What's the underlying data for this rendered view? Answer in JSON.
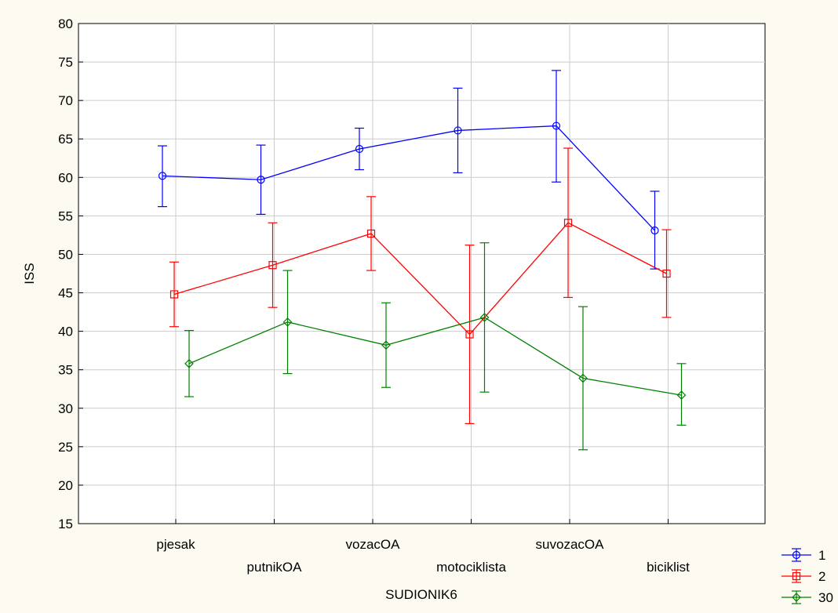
{
  "chart_data": {
    "type": "line",
    "xlabel": "SUDIONIK6",
    "ylabel": "ISS",
    "ylim": [
      15,
      80
    ],
    "yticks": [
      15,
      20,
      25,
      30,
      35,
      40,
      45,
      50,
      55,
      60,
      65,
      70,
      75,
      80
    ],
    "categories": [
      "pjesak",
      "putnikOA",
      "vozacOA",
      "motociklista",
      "suvozacOA",
      "biciklist"
    ],
    "grid": true,
    "legend_position": "bottom-right",
    "error_bars": true,
    "series": [
      {
        "name": "1",
        "color": "#0000ff",
        "marker": "circle",
        "values": [
          60.2,
          59.7,
          63.7,
          66.1,
          66.7,
          53.1
        ],
        "lower": [
          56.2,
          55.2,
          61.0,
          60.6,
          59.4,
          48.1
        ],
        "upper": [
          64.1,
          64.2,
          66.4,
          71.6,
          73.9,
          58.2
        ]
      },
      {
        "name": "2",
        "color": "#ff0000",
        "marker": "square",
        "values": [
          44.8,
          48.6,
          52.7,
          39.6,
          54.1,
          47.5
        ],
        "lower": [
          40.6,
          43.1,
          47.9,
          28.0,
          44.4,
          41.8
        ],
        "upper": [
          49.0,
          54.1,
          57.5,
          51.2,
          63.8,
          53.2
        ]
      },
      {
        "name": "30",
        "color": "#008000",
        "marker": "diamond",
        "values": [
          35.8,
          41.2,
          38.2,
          41.8,
          33.9,
          31.7
        ],
        "lower": [
          31.5,
          34.5,
          32.7,
          32.1,
          24.6,
          27.8
        ],
        "upper": [
          40.1,
          47.9,
          43.7,
          51.5,
          43.2,
          35.8
        ]
      }
    ]
  }
}
